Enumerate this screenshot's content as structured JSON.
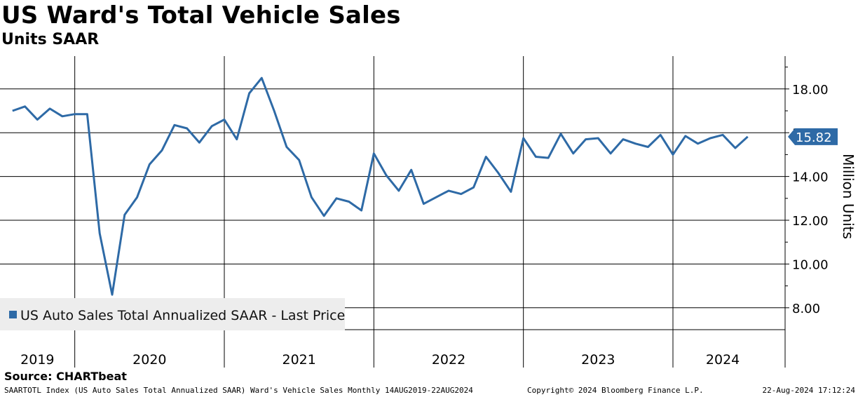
{
  "title": "US Ward's Total Vehicle Sales",
  "subtitle": "Units SAAR",
  "source": "Source: CHARTbeat",
  "footer": {
    "left": "SAARTOTL Index (US Auto Sales Total Annualized SAAR) Ward's Vehicle Sales  Monthly 14AUG2019-22AUG2024",
    "center": "Copyright© 2024 Bloomberg Finance L.P.",
    "right": "22-Aug-2024 17:12:24"
  },
  "colors": {
    "series": "#2e6aa6",
    "last_value_box": "#2e6aa6",
    "grid": "#000000",
    "legend_bg": "#ededed"
  },
  "chart_data": {
    "type": "line",
    "title": "US Ward's Total Vehicle Sales",
    "subtitle": "Units SAAR",
    "ylabel": "Million Units",
    "xlabel": "",
    "ylim": [
      7.0,
      19.5
    ],
    "y_ticks": [
      "8.00",
      "10.00",
      "12.00",
      "14.00",
      "16.00",
      "18.00"
    ],
    "y_tick_values": [
      8,
      10,
      12,
      14,
      16,
      18
    ],
    "x_range": [
      "2019-07",
      "2024-10"
    ],
    "years": [
      "2019",
      "2020",
      "2021",
      "2022",
      "2023",
      "2024"
    ],
    "grid": true,
    "legend_position": "bottom-left",
    "last_value": "15.82",
    "series": [
      {
        "name": "US Auto Sales Total Annualized SAAR - Last Price",
        "x": [
          "2019-08",
          "2019-09",
          "2019-10",
          "2019-11",
          "2019-12",
          "2020-01",
          "2020-02",
          "2020-03",
          "2020-04",
          "2020-05",
          "2020-06",
          "2020-07",
          "2020-08",
          "2020-09",
          "2020-10",
          "2020-11",
          "2020-12",
          "2021-01",
          "2021-02",
          "2021-03",
          "2021-04",
          "2021-05",
          "2021-06",
          "2021-07",
          "2021-08",
          "2021-09",
          "2021-10",
          "2021-11",
          "2021-12",
          "2022-01",
          "2022-02",
          "2022-03",
          "2022-04",
          "2022-05",
          "2022-06",
          "2022-07",
          "2022-08",
          "2022-09",
          "2022-10",
          "2022-11",
          "2022-12",
          "2023-01",
          "2023-02",
          "2023-03",
          "2023-04",
          "2023-05",
          "2023-06",
          "2023-07",
          "2023-08",
          "2023-09",
          "2023-10",
          "2023-11",
          "2023-12",
          "2024-01",
          "2024-02",
          "2024-03",
          "2024-04",
          "2024-05",
          "2024-06",
          "2024-07"
        ],
        "values": [
          17.0,
          17.2,
          16.6,
          17.1,
          16.75,
          16.85,
          16.85,
          11.4,
          8.6,
          12.25,
          13.05,
          14.55,
          15.2,
          16.35,
          16.2,
          15.55,
          16.3,
          16.6,
          15.7,
          17.8,
          18.5,
          17.0,
          15.35,
          14.75,
          13.05,
          12.2,
          13.0,
          12.85,
          12.45,
          15.05,
          14.05,
          13.35,
          14.3,
          12.75,
          13.05,
          13.35,
          13.2,
          13.5,
          14.9,
          14.15,
          13.3,
          15.75,
          14.9,
          14.85,
          15.95,
          15.05,
          15.7,
          15.75,
          15.05,
          15.7,
          15.5,
          15.35,
          15.9,
          15.0,
          15.85,
          15.5,
          15.75,
          15.9,
          15.3,
          15.82
        ]
      }
    ]
  }
}
